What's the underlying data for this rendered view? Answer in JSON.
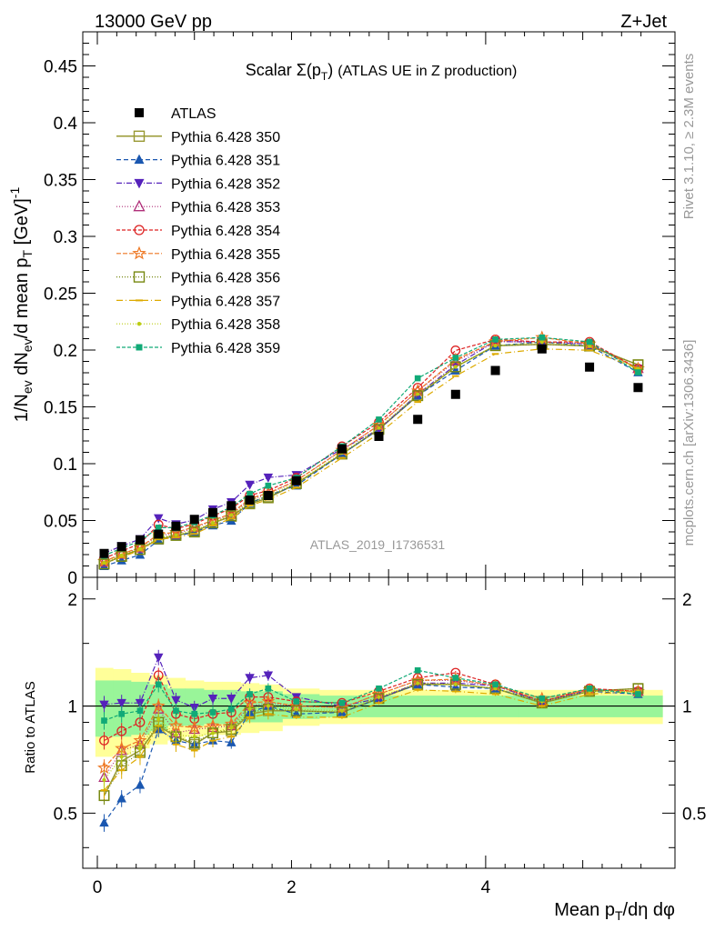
{
  "header": {
    "energy_label": "13000 GeV pp",
    "process_label": "Z+Jet"
  },
  "side_labels": {
    "rivet": "Rivet 3.1.10, ≥ 2.3M events",
    "mcplots": "mcplots.cern.ch [arXiv:1306.3436]"
  },
  "chart_data": {
    "type": "scatter",
    "title": "Scalar Σ(p_T) (ATLAS UE in Z production)",
    "analysis_id": "ATLAS_2019_I1736531",
    "xlabel": "Mean p_T/dη dφ",
    "ylabel": "1/N_ev dN_ev/d mean p_T [GeV]^-1",
    "ratio_ylabel": "Ratio to ATLAS",
    "xlim": [
      -0.15,
      5.95
    ],
    "ylim": [
      0,
      0.48
    ],
    "ratio_ylim": [
      0.35,
      2.3
    ],
    "x_ticks": [
      0,
      2,
      4
    ],
    "y_ticks": [
      0,
      0.05,
      0.1,
      0.15,
      0.2,
      0.25,
      0.3,
      0.35,
      0.4,
      0.45
    ],
    "ratio_ticks": [
      0.5,
      1,
      2
    ],
    "legend_position": "top-left",
    "x": [
      0.07,
      0.25,
      0.44,
      0.63,
      0.81,
      1.0,
      1.19,
      1.38,
      1.57,
      1.76,
      2.05,
      2.52,
      2.9,
      3.3,
      3.69,
      4.1,
      4.58,
      5.07,
      5.57
    ],
    "data": {
      "name": "ATLAS",
      "values": [
        0.021,
        0.027,
        0.033,
        0.038,
        0.045,
        0.051,
        0.057,
        0.063,
        0.068,
        0.072,
        0.085,
        0.113,
        0.124,
        0.139,
        0.161,
        0.182,
        0.201,
        0.185,
        0.167
      ],
      "band_inner": [
        0.18,
        0.18,
        0.17,
        0.15,
        0.12,
        0.12,
        0.11,
        0.11,
        0.1,
        0.1,
        0.08,
        0.07,
        0.07,
        0.07,
        0.07,
        0.07,
        0.07,
        0.07,
        0.07
      ],
      "band_outer": [
        0.28,
        0.27,
        0.24,
        0.22,
        0.2,
        0.18,
        0.17,
        0.17,
        0.16,
        0.15,
        0.12,
        0.11,
        0.11,
        0.11,
        0.11,
        0.11,
        0.11,
        0.11,
        0.11
      ]
    },
    "series": [
      {
        "name": "Pythia 6.428 350",
        "color": "#999933",
        "marker": "square-open",
        "dash": "",
        "width": 1.5,
        "ratio": [
          0.56,
          0.7,
          0.75,
          0.88,
          0.82,
          0.78,
          0.84,
          0.85,
          0.95,
          0.97,
          0.97,
          0.96,
          1.05,
          1.15,
          1.15,
          1.12,
          1.02,
          1.1,
          1.12
        ]
      },
      {
        "name": "Pythia 6.428 351",
        "color": "#1a57b0",
        "marker": "triangle-up",
        "dash": "5,3",
        "width": 1.2,
        "ratio": [
          0.47,
          0.55,
          0.6,
          0.86,
          0.8,
          0.78,
          0.8,
          0.79,
          0.96,
          1.0,
          0.95,
          0.96,
          1.05,
          1.15,
          1.13,
          1.12,
          1.03,
          1.1,
          1.08
        ]
      },
      {
        "name": "Pythia 6.428 352",
        "color": "#5522bb",
        "marker": "triangle-down",
        "dash": "6,2,1,2",
        "width": 1.2,
        "ratio": [
          1.01,
          1.02,
          1.02,
          1.37,
          1.04,
          0.99,
          1.05,
          1.05,
          1.2,
          1.22,
          1.06,
          1.0,
          1.05,
          1.16,
          1.16,
          1.14,
          1.03,
          1.11,
          1.1
        ]
      },
      {
        "name": "Pythia 6.428 353",
        "color": "#b0307a",
        "marker": "triangle-up-open",
        "dash": "1,2",
        "width": 1.2,
        "ratio": [
          0.63,
          0.75,
          0.78,
          0.98,
          0.84,
          0.86,
          0.87,
          0.88,
          1.0,
          1.02,
          1.0,
          0.99,
          1.08,
          1.18,
          1.18,
          1.14,
          1.03,
          1.11,
          1.1
        ]
      },
      {
        "name": "Pythia 6.428 354",
        "color": "#dd2222",
        "marker": "circle-open",
        "dash": "4,2",
        "width": 1.2,
        "ratio": [
          0.8,
          0.85,
          0.9,
          1.22,
          0.95,
          0.92,
          0.95,
          0.96,
          1.06,
          1.06,
          1.03,
          1.02,
          1.1,
          1.2,
          1.24,
          1.15,
          1.03,
          1.12,
          1.1
        ]
      },
      {
        "name": "Pythia 6.428 355",
        "color": "#ee7722",
        "marker": "star-open",
        "dash": "5,2",
        "width": 1.2,
        "ratio": [
          0.67,
          0.76,
          0.8,
          1.0,
          0.88,
          0.87,
          0.88,
          0.89,
          1.02,
          1.03,
          1.0,
          0.99,
          1.08,
          1.18,
          1.19,
          1.14,
          1.05,
          1.11,
          1.1
        ]
      },
      {
        "name": "Pythia 6.428 356",
        "color": "#778811",
        "marker": "square-open",
        "dash": "1,2",
        "width": 1.2,
        "ratio": [
          0.56,
          0.68,
          0.74,
          0.9,
          0.82,
          0.79,
          0.84,
          0.86,
          0.96,
          0.98,
          0.97,
          0.96,
          1.05,
          1.15,
          1.15,
          1.12,
          1.02,
          1.1,
          1.12
        ]
      },
      {
        "name": "Pythia 6.428 357",
        "color": "#ddaa00",
        "marker": "dash",
        "dash": "7,3,1,3",
        "width": 1.2,
        "ratio": [
          0.58,
          0.66,
          0.72,
          0.88,
          0.78,
          0.75,
          0.8,
          0.82,
          0.93,
          0.95,
          0.93,
          0.93,
          1.02,
          1.11,
          1.1,
          1.08,
          1.0,
          1.08,
          1.1
        ]
      },
      {
        "name": "Pythia 6.428 358",
        "color": "#bbcc11",
        "marker": "dot",
        "dash": "1,2",
        "width": 1.2,
        "ratio": [
          0.62,
          0.72,
          0.76,
          0.92,
          0.83,
          0.82,
          0.84,
          0.87,
          0.98,
          1.0,
          0.98,
          0.97,
          1.06,
          1.16,
          1.15,
          1.12,
          1.03,
          1.1,
          1.1
        ]
      },
      {
        "name": "Pythia 6.428 359",
        "color": "#11aa77",
        "marker": "square-small",
        "dash": "4,2",
        "width": 1.2,
        "ratio": [
          0.91,
          0.95,
          0.97,
          1.15,
          0.97,
          0.95,
          0.96,
          0.98,
          1.08,
          1.12,
          1.03,
          1.02,
          1.12,
          1.26,
          1.2,
          1.15,
          1.05,
          1.12,
          1.08
        ]
      }
    ]
  }
}
